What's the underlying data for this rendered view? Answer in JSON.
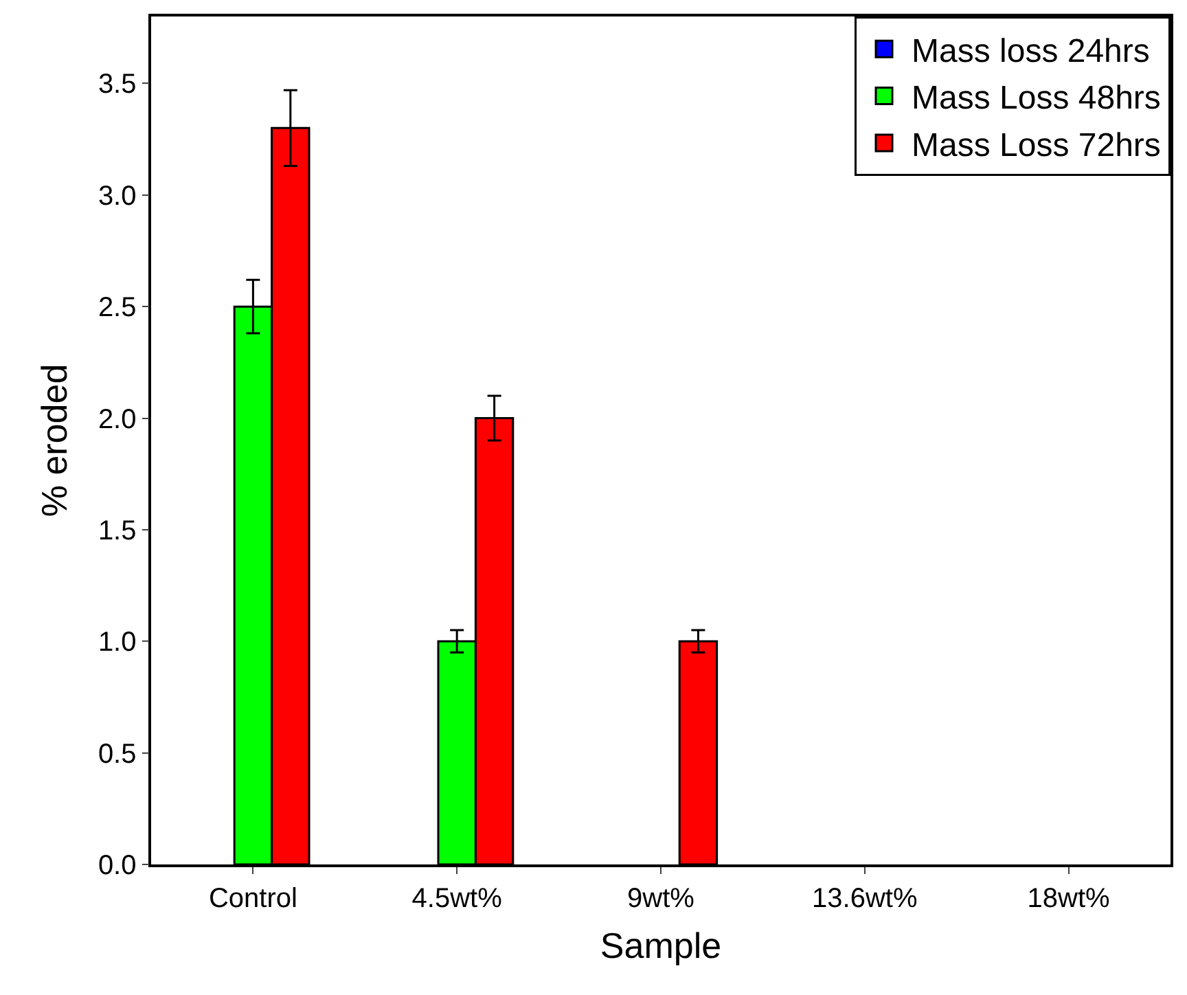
{
  "chart_data": {
    "type": "bar",
    "xlabel": "Sample",
    "ylabel": "% eroded",
    "categories": [
      "Control",
      "4.5wt%",
      "9wt%",
      "13.6wt%",
      "18wt%"
    ],
    "series": [
      {
        "name": "Mass loss 24hrs",
        "color": "#0000ff",
        "values": [
          null,
          null,
          null,
          null,
          null
        ]
      },
      {
        "name": "Mass Loss 48hrs",
        "color": "#00ff00",
        "values": [
          2.5,
          1.0,
          null,
          null,
          null
        ],
        "errors": [
          0.12,
          0.05,
          null,
          null,
          null
        ]
      },
      {
        "name": "Mass Loss 72hrs",
        "color": "#ff0000",
        "values": [
          3.3,
          2.0,
          1.0,
          null,
          null
        ],
        "errors": [
          0.17,
          0.1,
          0.05,
          null,
          null
        ]
      }
    ],
    "ylim": [
      0,
      3.8
    ],
    "yticks": [
      {
        "value": 0,
        "label": "0.0"
      },
      {
        "value": 0.5,
        "label": "0.5"
      },
      {
        "value": 1,
        "label": "1.0"
      },
      {
        "value": 1.5,
        "label": "1.5"
      },
      {
        "value": 2,
        "label": "2.0"
      },
      {
        "value": 2.5,
        "label": "2.5"
      },
      {
        "value": 3,
        "label": "3.0"
      },
      {
        "value": 3.5,
        "label": "3.5"
      }
    ],
    "legend": "top right"
  }
}
